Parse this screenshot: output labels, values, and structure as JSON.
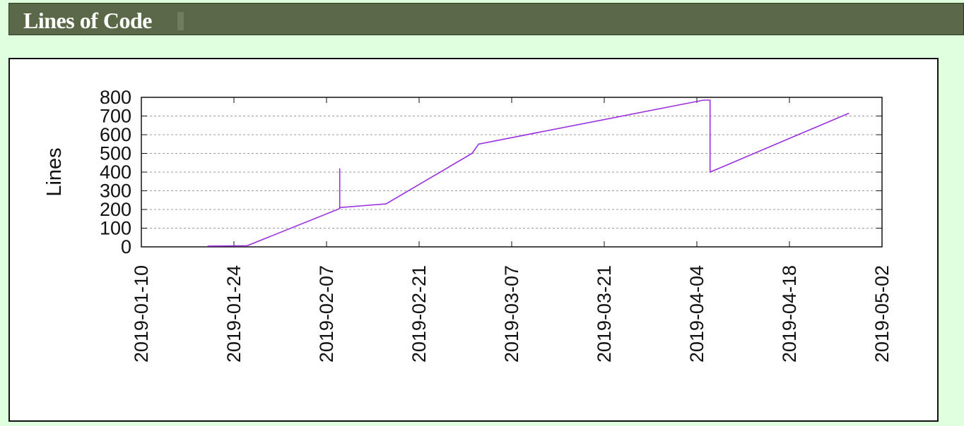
{
  "page": {
    "heading": "Lines of Code"
  },
  "chart_data": {
    "type": "line",
    "title": "",
    "xlabel": "",
    "ylabel": "Lines",
    "ylim": [
      0,
      800
    ],
    "yticks": [
      0,
      100,
      200,
      300,
      400,
      500,
      600,
      700,
      800
    ],
    "xticks": [
      "2019-01-10",
      "2019-01-24",
      "2019-02-07",
      "2019-02-21",
      "2019-03-07",
      "2019-03-21",
      "2019-04-04",
      "2019-04-18",
      "2019-05-02"
    ],
    "xlim": [
      "2019-01-10",
      "2019-05-02"
    ],
    "grid": "horizontal dashed",
    "colors": {
      "line": "#9b30e0",
      "grid": "#9a9a9a"
    },
    "series": [
      {
        "name": "Lines",
        "points": [
          {
            "x": "2019-01-20",
            "y": 4
          },
          {
            "x": "2019-01-26",
            "y": 6
          },
          {
            "x": "2019-02-09",
            "y": 205
          },
          {
            "x": "2019-02-09",
            "y": 420
          },
          {
            "x": "2019-02-09",
            "y": 210
          },
          {
            "x": "2019-02-16",
            "y": 230
          },
          {
            "x": "2019-03-01",
            "y": 500
          },
          {
            "x": "2019-03-02",
            "y": 550
          },
          {
            "x": "2019-04-05",
            "y": 785
          },
          {
            "x": "2019-04-06",
            "y": 785
          },
          {
            "x": "2019-04-06",
            "y": 400
          },
          {
            "x": "2019-04-27",
            "y": 715
          }
        ]
      }
    ]
  }
}
